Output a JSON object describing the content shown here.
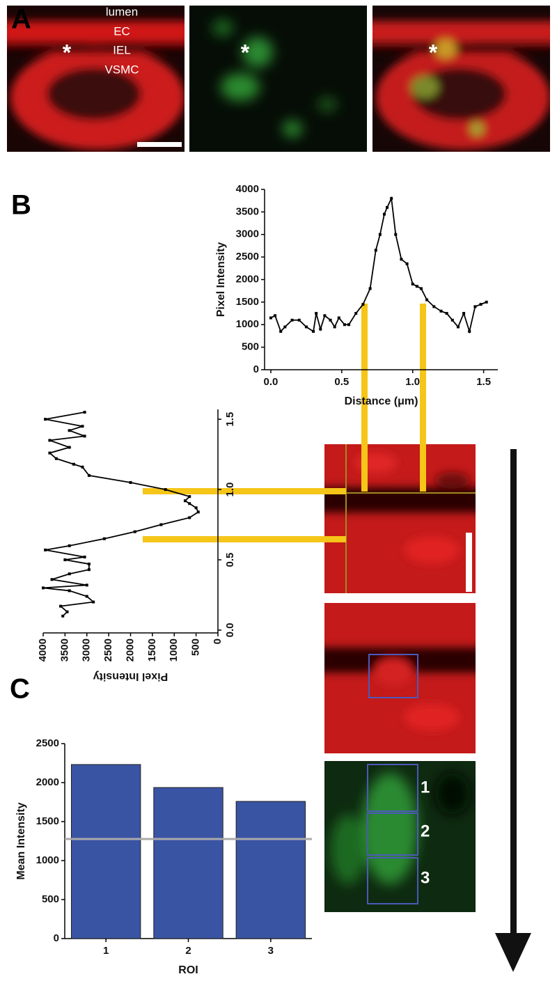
{
  "panel_labels": [
    "A",
    "B",
    "C"
  ],
  "image_labels": [
    "lumen",
    "EC",
    "IEL",
    "VSMC"
  ],
  "asterisks": [
    "*",
    "*",
    "*"
  ],
  "roi_labels": [
    "1",
    "2",
    "3"
  ],
  "chart_data": [
    {
      "type": "line",
      "xlabel": "Distance (μm)",
      "ylabel": "Pixel Intensity",
      "color": "#000000",
      "x": [
        0.0,
        0.03,
        0.07,
        0.1,
        0.15,
        0.2,
        0.25,
        0.3,
        0.32,
        0.35,
        0.38,
        0.42,
        0.45,
        0.48,
        0.52,
        0.55,
        0.6,
        0.65,
        0.7,
        0.74,
        0.77,
        0.8,
        0.82,
        0.85,
        0.88,
        0.92,
        0.96,
        1.0,
        1.03,
        1.06,
        1.1,
        1.15,
        1.2,
        1.24,
        1.28,
        1.32,
        1.36,
        1.4,
        1.44,
        1.48,
        1.52
      ],
      "values": [
        1150,
        1200,
        850,
        950,
        1100,
        1100,
        950,
        850,
        1250,
        900,
        1200,
        1100,
        950,
        1150,
        1000,
        1000,
        1250,
        1450,
        1800,
        2650,
        3000,
        3450,
        3600,
        3800,
        3000,
        2450,
        2350,
        1900,
        1850,
        1800,
        1550,
        1400,
        1300,
        1250,
        1100,
        950,
        1250,
        850,
        1400,
        1450,
        1500
      ],
      "xlim": [
        -0.044,
        1.6
      ],
      "ylim": [
        0,
        4000
      ],
      "xticks": [
        {
          "value": 0.0,
          "label": "0.0"
        },
        0.5,
        {
          "value": 1.0,
          "label": "1.0"
        },
        1.5
      ],
      "yticks": [
        0,
        500,
        1000,
        1500,
        2000,
        2500,
        3000,
        3500,
        4000
      ]
    },
    {
      "type": "line",
      "rotation": -90,
      "ylabel": "Pixel Intensity",
      "color": "#000000",
      "x": [
        0.1,
        0.13,
        0.17,
        0.2,
        0.24,
        0.28,
        0.3,
        0.32,
        0.36,
        0.4,
        0.43,
        0.47,
        0.5,
        0.52,
        0.57,
        0.6,
        0.65,
        0.7,
        0.75,
        0.8,
        0.84,
        0.87,
        0.9,
        0.92,
        0.95,
        1.0,
        1.05,
        1.1,
        1.16,
        1.18,
        1.22,
        1.26,
        1.3,
        1.35,
        1.38,
        1.42,
        1.45,
        1.5,
        1.55
      ],
      "values": [
        3550,
        3450,
        3600,
        2850,
        3000,
        3400,
        4000,
        3000,
        3800,
        3400,
        2950,
        2950,
        3500,
        3050,
        3950,
        3400,
        2600,
        1900,
        1300,
        650,
        450,
        500,
        650,
        750,
        650,
        1200,
        2000,
        2950,
        3100,
        3300,
        3700,
        3850,
        3400,
        3850,
        3050,
        3400,
        3100,
        3950,
        3050
      ],
      "xlim": [
        -0.02,
        1.57
      ],
      "ylim": [
        0,
        4000
      ],
      "xticks": [
        {
          "value": 0.0,
          "label": "0.0"
        },
        0.5,
        {
          "value": 1.0,
          "label": "1.0"
        },
        1.5
      ],
      "yticks": [
        0,
        500,
        1000,
        1500,
        2000,
        2500,
        3000,
        3500,
        4000
      ]
    },
    {
      "type": "bar",
      "xlabel": "ROI",
      "ylabel": "Mean Intensity",
      "color": "#3a54a4",
      "categories": [
        "1",
        "2",
        "3"
      ],
      "values": [
        2232,
        1937,
        1759
      ],
      "hline": 1277,
      "hline_color": "#aaaaaa",
      "ylim": [
        0,
        2500
      ],
      "yticks": [
        0,
        500,
        1000,
        1500,
        2000,
        2500
      ]
    }
  ]
}
